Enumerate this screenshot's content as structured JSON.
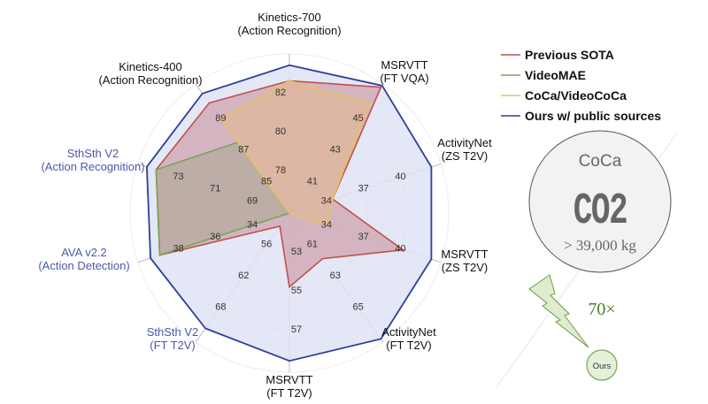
{
  "chart_data": {
    "type": "radar",
    "axes": [
      {
        "label": [
          "Kinetics-700",
          "(Action Recognition)"
        ],
        "ticks": [
          78,
          80,
          82
        ],
        "range": [
          76,
          84
        ],
        "color": "#111111"
      },
      {
        "label": [
          "MSRVTT",
          "(FT VQA)"
        ],
        "ticks": [
          41,
          43,
          45
        ],
        "range": [
          39,
          47
        ],
        "color": "#111111"
      },
      {
        "label": [
          "ActivityNet",
          "(ZS T2V)"
        ],
        "ticks": [
          34,
          37,
          40
        ],
        "range": [
          31,
          43
        ],
        "color": "#111111"
      },
      {
        "label": [
          "MSRVTT",
          "(ZS T2V)"
        ],
        "ticks": [
          34,
          37,
          40
        ],
        "range": [
          31,
          43
        ],
        "color": "#111111"
      },
      {
        "label": [
          "ActivityNet",
          "(FT T2V)"
        ],
        "ticks": [
          61,
          63,
          65
        ],
        "range": [
          59,
          67
        ],
        "color": "#111111"
      },
      {
        "label": [
          "MSRVTT",
          "(FT T2V)"
        ],
        "ticks": [
          53,
          55,
          57
        ],
        "range": [
          51,
          59
        ],
        "color": "#111111"
      },
      {
        "label": [
          "SthSth V2",
          "(FT T2V)"
        ],
        "ticks": [
          56,
          62,
          68
        ],
        "range": [
          50,
          74
        ],
        "color": "#4a5aa8"
      },
      {
        "label": [
          "AVA v2.2",
          "(Action Detection)"
        ],
        "ticks": [
          34,
          36,
          38
        ],
        "range": [
          32,
          40
        ],
        "color": "#4a5aa8"
      },
      {
        "label": [
          "SthSth V2",
          "(Action Recognition)"
        ],
        "ticks": [
          69,
          71,
          73
        ],
        "range": [
          67,
          75
        ],
        "color": "#4a5aa8"
      },
      {
        "label": [
          "Kinetics-400",
          "(Action Recognition)"
        ],
        "ticks": [
          85,
          87,
          89
        ],
        "range": [
          83,
          91
        ],
        "color": "#111111"
      }
    ],
    "series": [
      {
        "name": "Ours w/ public sources",
        "color": "#2c3f9e",
        "fill": "#dfe3f3",
        "values": [
          83.6,
          47.1,
          42.5,
          42.5,
          67,
          58.6,
          72,
          39.5,
          74.7,
          90.6
        ]
      },
      {
        "name": "Previous SOTA",
        "color": "#c0504d",
        "fill": "#c98a98",
        "values": [
          82.8,
          47,
          34.5,
          40.2,
          61.9,
          54.8,
          52.5,
          39,
          74.2,
          90
        ]
      },
      {
        "name": "VideoMAE",
        "color": "#7aa35a",
        "fill": "#a8a890",
        "values": [
          null,
          null,
          null,
          null,
          null,
          null,
          null,
          39,
          74.2,
          87.5
        ]
      },
      {
        "name": "CoCa/VideoCoCa",
        "color": "#e6c262",
        "fill": "#e3b98c",
        "values": [
          82.8,
          46,
          34.5,
          34.1,
          null,
          null,
          null,
          null,
          null,
          89
        ]
      }
    ],
    "legend": {
      "position": "top-right",
      "order": [
        "Previous SOTA",
        "VideoMAE",
        "CoCa/VideoCoCa",
        "Ours w/ public sources"
      ]
    }
  },
  "co2": {
    "title": "CoCa",
    "symbol": "CO2",
    "amount": "> 39,000 kg",
    "ratio": "70×",
    "ours_label": "Ours"
  }
}
